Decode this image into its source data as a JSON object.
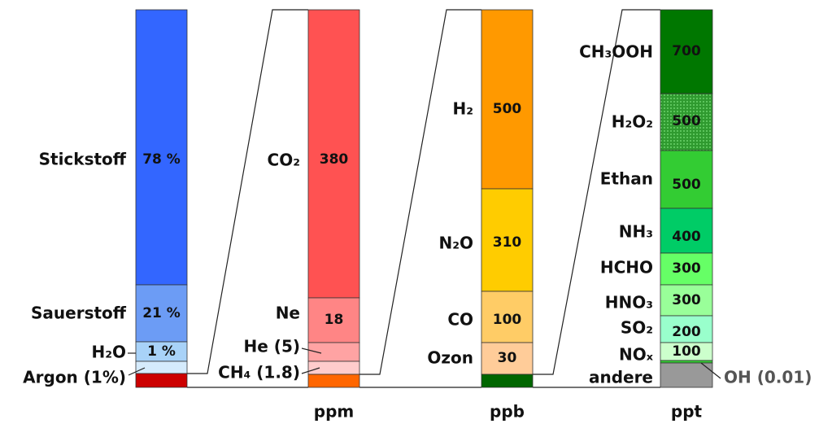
{
  "columns": [
    {
      "segments": [
        {
          "label": "Stickstoff",
          "value": "78 %"
        },
        {
          "label": "Sauerstoff",
          "value": "21 %"
        },
        {
          "label": "H₂O",
          "value": "1 %"
        },
        {
          "label": "Argon (1%)"
        }
      ]
    },
    {
      "unit": "ppm",
      "segments": [
        {
          "label": "CO₂",
          "value": "380"
        },
        {
          "label": "Ne",
          "value": "18"
        },
        {
          "label": "He (5)"
        },
        {
          "label": "CH₄ (1.8)"
        }
      ]
    },
    {
      "unit": "ppb",
      "segments": [
        {
          "label": "H₂",
          "value": "500"
        },
        {
          "label": "N₂O",
          "value": "310"
        },
        {
          "label": "CO",
          "value": "100"
        },
        {
          "label": "Ozon",
          "value": "30"
        }
      ]
    },
    {
      "unit": "ppt",
      "segments": [
        {
          "label": "CH₃OOH",
          "value": "700"
        },
        {
          "label": "H₂O₂",
          "value": "500"
        },
        {
          "label": "Ethan",
          "value": "500"
        },
        {
          "label": "NH₃",
          "value": "400"
        },
        {
          "label": "HCHO",
          "value": "300"
        },
        {
          "label": "HNO₃",
          "value": "300"
        },
        {
          "label": "SO₂",
          "value": "200"
        },
        {
          "label": "NOₓ",
          "value": "100"
        },
        {
          "label": "OH (0.01)"
        },
        {
          "label": "andere"
        }
      ]
    }
  ]
}
